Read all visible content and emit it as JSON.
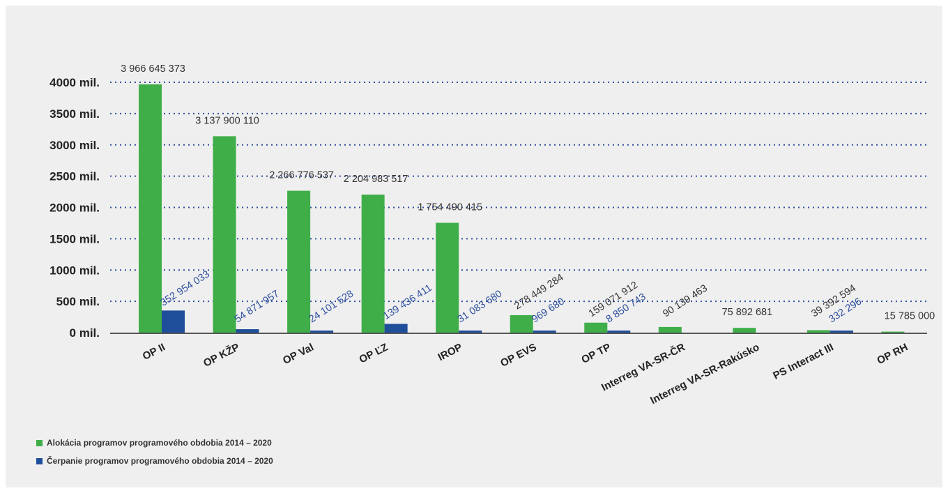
{
  "chart_data": {
    "type": "bar",
    "title": "",
    "xlabel": "",
    "ylabel": "",
    "ylim": [
      0,
      4000000000
    ],
    "yticks": [
      {
        "value": 0,
        "label": "0 mil."
      },
      {
        "value": 500000000,
        "label": "500 mil."
      },
      {
        "value": 1000000000,
        "label": "1000 mil."
      },
      {
        "value": 1500000000,
        "label": "1500 mil."
      },
      {
        "value": 2000000000,
        "label": "2000 mil."
      },
      {
        "value": 2500000000,
        "label": "2500 mil."
      },
      {
        "value": 3000000000,
        "label": "3000 mil."
      },
      {
        "value": 3500000000,
        "label": "3500 mil."
      },
      {
        "value": 4000000000,
        "label": "4000 mil."
      }
    ],
    "grid": true,
    "legend_position": "bottom-left",
    "categories": [
      "OP II",
      "OP KŽP",
      "OP Val",
      "OP ĽZ",
      "IROP",
      "OP EVS",
      "OP TP",
      "Interreg VA-SR-ČR",
      "Interreg VA-SR-Rakúsko",
      "PS Interact III",
      "OP RH"
    ],
    "series": [
      {
        "name": "Alokácia programov programového obdobia 2014 – 2020",
        "color": "#3fae49",
        "values": [
          3966645373,
          3137900110,
          2266776537,
          2204983517,
          1754490415,
          278449284,
          159071912,
          90139463,
          75892681,
          39392594,
          15785000
        ],
        "labels": [
          "3 966 645 373",
          "3 137 900 110",
          "2 266 776 537",
          "2 204 983 517",
          "1 754 490 415",
          "278 449 284",
          "159 071 912",
          "90 139 463",
          "75 892 681",
          "39 392 594",
          "15 785 000"
        ]
      },
      {
        "name": "Čerpanie programov programového obdobia 2014 – 2020",
        "color": "#1f4e9a",
        "values": [
          352954033,
          54871957,
          24101528,
          139436411,
          31083680,
          969680,
          8850743,
          0,
          0,
          332296,
          0
        ],
        "labels": [
          "352 954 033",
          "54 871 957",
          "24 101 528",
          "139 436 411",
          "31 083 680",
          "969 680",
          "8 850 743",
          "",
          "",
          "332 296",
          ""
        ]
      }
    ]
  }
}
